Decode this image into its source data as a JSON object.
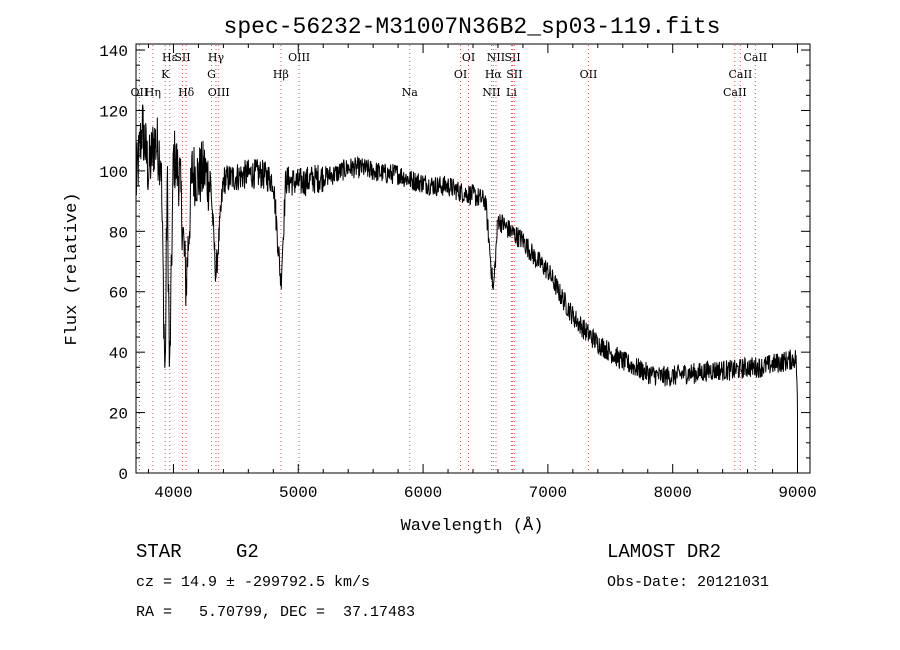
{
  "chart_data": {
    "type": "line",
    "title": "spec-56232-M31007N36B2_sp03-119.fits",
    "xlabel": "Wavelength (Å)",
    "ylabel": "Flux (relative)",
    "xlim": [
      3700,
      9100
    ],
    "ylim": [
      0,
      142
    ],
    "x_ticks": [
      4000,
      5000,
      6000,
      7000,
      8000,
      9000
    ],
    "y_ticks": [
      0,
      20,
      40,
      60,
      80,
      100,
      120,
      140
    ],
    "grid": false,
    "series": [
      {
        "x": [
          3700,
          3750,
          3800,
          3850,
          3900,
          3933,
          3950,
          3969,
          4000,
          4050,
          4101,
          4150,
          4200,
          4250,
          4300,
          4340,
          4400,
          4500,
          4600,
          4700,
          4800,
          4861,
          4900,
          5000,
          5100,
          5200,
          5300,
          5400,
          5500,
          5600,
          5700,
          5800,
          5900,
          6000,
          6100,
          6200,
          6300,
          6400,
          6500,
          6563,
          6600,
          6700,
          6800,
          6900,
          7000,
          7100,
          7200,
          7300,
          7400,
          7500,
          7600,
          7700,
          7800,
          7900,
          8000,
          8100,
          8200,
          8300,
          8400,
          8500,
          8600,
          8700,
          8800,
          8900,
          8990,
          9000
        ],
        "y": [
          95,
          115,
          100,
          110,
          105,
          30,
          100,
          30,
          105,
          98,
          62,
          100,
          98,
          100,
          95,
          65,
          97,
          98,
          99,
          99,
          97,
          63,
          97,
          96,
          97,
          98,
          99,
          101,
          101,
          100,
          99,
          99,
          97,
          96,
          95,
          95,
          93,
          92,
          90,
          60,
          84,
          80,
          77,
          71,
          67,
          59,
          52,
          47,
          43,
          40,
          37,
          35,
          33,
          32,
          32,
          33,
          33,
          34,
          34,
          34,
          35,
          35,
          36,
          37,
          38,
          20
        ]
      }
    ],
    "lines": [
      {
        "label": "Hε",
        "x": 3970,
        "row": 0
      },
      {
        "label": "OII",
        "x": 3727,
        "row": 2
      },
      {
        "label": "Hη",
        "x": 3835,
        "row": 2
      },
      {
        "label": "K",
        "x": 3934,
        "row": 1
      },
      {
        "label": "SII",
        "x": 4072,
        "row": 0
      },
      {
        "label": "Hδ",
        "x": 4102,
        "row": 2
      },
      {
        "label": "Hγ",
        "x": 4341,
        "row": 0
      },
      {
        "label": "G",
        "x": 4305,
        "row": 1
      },
      {
        "label": "OIII",
        "x": 4363,
        "row": 2
      },
      {
        "label": "OIII",
        "x": 5007,
        "row": 0
      },
      {
        "label": "Hβ",
        "x": 4861,
        "row": 1
      },
      {
        "label": "Na",
        "x": 5893,
        "row": 2
      },
      {
        "label": "OI",
        "x": 6364,
        "row": 0
      },
      {
        "label": "OI",
        "x": 6300,
        "row": 1
      },
      {
        "label": "NII",
        "x": 6548,
        "row": 2
      },
      {
        "label": "NII",
        "x": 6584,
        "row": 0
      },
      {
        "label": "Hα",
        "x": 6563,
        "row": 1
      },
      {
        "label": "SII",
        "x": 6717,
        "row": 0
      },
      {
        "label": "SII",
        "x": 6731,
        "row": 1
      },
      {
        "label": "Li",
        "x": 6708,
        "row": 2
      },
      {
        "label": "OII",
        "x": 7325,
        "row": 1
      },
      {
        "label": "CaII",
        "x": 8662,
        "row": 0
      },
      {
        "label": "CaII",
        "x": 8542,
        "row": 1
      },
      {
        "label": "CaII",
        "x": 8498,
        "row": 2
      }
    ]
  },
  "info": {
    "object_type": "STAR",
    "subclass": "G2",
    "survey": "LAMOST DR2",
    "cz": "cz = 14.9 ± -299792.5 km/s",
    "obs_date": "Obs-Date: 20121031",
    "radec": "RA =   5.70799, DEC =  37.17483"
  }
}
